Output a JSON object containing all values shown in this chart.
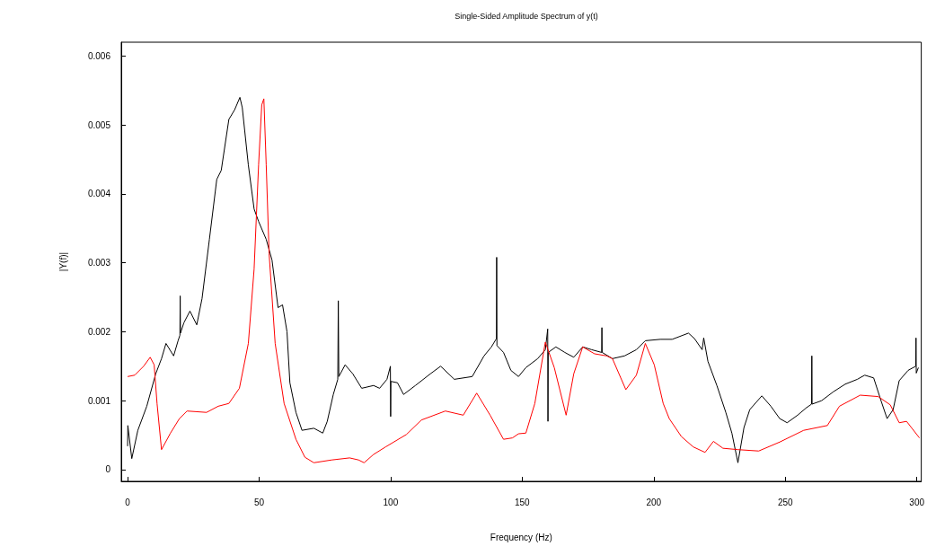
{
  "chart_data": {
    "type": "line",
    "title": "Single-Sided Amplitude Spectrum of y(t)",
    "xlabel": "Frequency (Hz)",
    "ylabel": "|Y(f)|",
    "xlim": [
      -2.4,
      301.7
    ],
    "xticks": [
      0,
      50,
      100,
      150,
      200,
      250,
      300
    ],
    "ylim": [
      -0.00017,
      0.0062
    ],
    "yticks": [
      0,
      0.001,
      0.002,
      0.003,
      0.004,
      0.005,
      0.006
    ],
    "grid": false,
    "marker": "none",
    "line_style": "solid",
    "series": [
      {
        "color": "#000000",
        "x": [
          0,
          0.1,
          1.6,
          3.9,
          7.3,
          10.7,
          12.9,
          14.6,
          17.5,
          19.2,
          19.9,
          20,
          20.1,
          21.4,
          23.7,
          26.3,
          28.3,
          31.1,
          33.9,
          35.6,
          38.5,
          40.7,
          42.7,
          43.6,
          45.9,
          48.1,
          49.8,
          52.7,
          54.9,
          57.2,
          58.9,
          60.6,
          61.7,
          64,
          66.3,
          70.8,
          74.2,
          75.9,
          78.2,
          79.9,
          80.1,
          80.3,
          82.7,
          85.6,
          89,
          93.5,
          95.8,
          98.6,
          99.9,
          100,
          100.1,
          102.6,
          104.9,
          109.4,
          115.1,
          119,
          124.2,
          131,
          135.5,
          138.3,
          140.2,
          140.3,
          140.4,
          142.9,
          145.7,
          148.6,
          151.4,
          155.9,
          158.8,
          159.7,
          159.8,
          159.9,
          162.8,
          166.2,
          169.6,
          173,
          176.4,
          180.2,
          180.3,
          180.4,
          184.3,
          188.9,
          193.4,
          196.8,
          202.5,
          207,
          213.2,
          215.5,
          218.4,
          219,
          220.6,
          224,
          227.4,
          229.7,
          232,
          234.3,
          236.5,
          241.1,
          244.5,
          247.9,
          250.7,
          254.7,
          258.1,
          260,
          260.1,
          260.2,
          263.8,
          268.3,
          272.8,
          277.4,
          280.2,
          283.6,
          286.4,
          288.7,
          291,
          293.3,
          296.7,
          299.6,
          299.7,
          299.8,
          300.6
        ],
        "values": [
          0.00034,
          0.00064,
          0.00016,
          0.00057,
          0.00092,
          0.00139,
          0.00161,
          0.00183,
          0.00165,
          0.00187,
          0.00195,
          0.00252,
          0.00198,
          0.00213,
          0.0023,
          0.0021,
          0.00248,
          0.00334,
          0.00421,
          0.00434,
          0.00508,
          0.00522,
          0.0054,
          0.00525,
          0.00442,
          0.00378,
          0.0036,
          0.00334,
          0.00304,
          0.00235,
          0.00239,
          0.002,
          0.00126,
          0.00083,
          0.00057,
          0.0006,
          0.00053,
          0.0007,
          0.00109,
          0.00131,
          0.00245,
          0.00135,
          0.00152,
          0.00139,
          0.00118,
          0.00122,
          0.00118,
          0.00131,
          0.0015,
          0.00077,
          0.00128,
          0.00126,
          0.00109,
          0.00122,
          0.00139,
          0.0015,
          0.00131,
          0.00135,
          0.00165,
          0.00178,
          0.0019,
          0.00308,
          0.0018,
          0.0017,
          0.00144,
          0.00135,
          0.00148,
          0.00161,
          0.00174,
          0.00204,
          0.0007,
          0.0017,
          0.00178,
          0.0017,
          0.00163,
          0.00178,
          0.00174,
          0.0017,
          0.00206,
          0.0017,
          0.00161,
          0.00165,
          0.00174,
          0.00187,
          0.00189,
          0.00189,
          0.00198,
          0.0019,
          0.00174,
          0.00191,
          0.00157,
          0.00122,
          0.00083,
          0.00053,
          0.0001,
          0.00061,
          0.00087,
          0.00107,
          0.00092,
          0.00074,
          0.00068,
          0.00079,
          0.0009,
          0.00095,
          0.00165,
          0.00095,
          0.001,
          0.00113,
          0.00124,
          0.00131,
          0.00137,
          0.00133,
          0.001,
          0.00074,
          0.00087,
          0.00129,
          0.00144,
          0.0015,
          0.00191,
          0.0014,
          0.00148
        ]
      },
      {
        "color": "#ff0000",
        "x": [
          0,
          2.7,
          6.1,
          8.6,
          10.1,
          11.2,
          12.9,
          16.3,
          19.7,
          22.6,
          30,
          34.5,
          38.5,
          42.5,
          45.9,
          48.1,
          49.8,
          51,
          51.8,
          52.7,
          53.8,
          56.1,
          59.5,
          64,
          67.4,
          70.8,
          77.6,
          84.4,
          87.8,
          89.9,
          93.5,
          98.1,
          106,
          111.7,
          120.8,
          127.6,
          132.7,
          137.8,
          142.9,
          146.3,
          148.6,
          151.4,
          154.8,
          158.8,
          162.2,
          166.7,
          169.6,
          173,
          177.5,
          182.1,
          184.3,
          189.4,
          193.4,
          196.8,
          200.2,
          203.6,
          205.9,
          210.5,
          215,
          219.5,
          222.7,
          226.3,
          232,
          239.9,
          247.9,
          257,
          266,
          270.6,
          278.5,
          285.3,
          289.9,
          293.3,
          296.1,
          301
        ],
        "values": [
          0.00135,
          0.00137,
          0.0015,
          0.00163,
          0.00152,
          0.00096,
          0.00029,
          0.00053,
          0.00074,
          0.00085,
          0.00083,
          0.00092,
          0.00096,
          0.00118,
          0.00183,
          0.00291,
          0.00442,
          0.00529,
          0.00538,
          0.00442,
          0.00313,
          0.00183,
          0.00096,
          0.00044,
          0.00018,
          0.0001,
          0.00014,
          0.00017,
          0.00014,
          0.0001,
          0.00022,
          0.00033,
          0.00051,
          0.00072,
          0.00085,
          0.00079,
          0.00111,
          0.00079,
          0.00044,
          0.00046,
          0.00052,
          0.00053,
          0.00096,
          0.00185,
          0.00148,
          0.00079,
          0.00139,
          0.00178,
          0.00168,
          0.00165,
          0.00161,
          0.00116,
          0.00137,
          0.00183,
          0.00152,
          0.00096,
          0.00074,
          0.00048,
          0.00033,
          0.00025,
          0.00041,
          0.00031,
          0.00029,
          0.00027,
          0.0004,
          0.00057,
          0.00064,
          0.00092,
          0.00108,
          0.00106,
          0.00094,
          0.00068,
          0.0007,
          0.00046
        ]
      }
    ]
  }
}
